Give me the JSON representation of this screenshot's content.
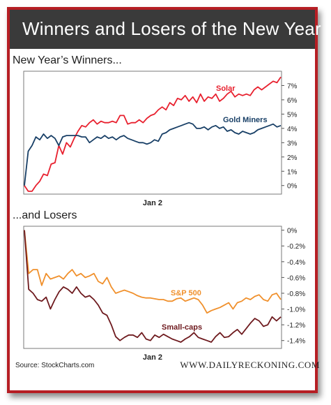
{
  "title": "Winners and Losers of the New Year",
  "footer": {
    "source": "Source: StockCharts.com",
    "brand": "WWW.DAILYRECKONING.COM"
  },
  "colors": {
    "frame": "#b61e24",
    "title_bg": "#3a3a3a",
    "solar": "#e8202e",
    "gold_miners": "#183f66",
    "sp500": "#f0902c",
    "small_caps": "#6e1a1e"
  },
  "chart_data": [
    {
      "type": "line",
      "title": "New Year’s Winners...",
      "xlabel": "Jan 2",
      "ylabel": "",
      "ylim": [
        -0.6,
        8.0
      ],
      "grid": false,
      "y_ticks": [
        "0%",
        "1%",
        "2%",
        "3%",
        "4%",
        "5%",
        "6%",
        "7%"
      ],
      "y_tick_values": [
        0,
        1,
        2,
        3,
        4,
        5,
        6,
        7
      ],
      "series": [
        {
          "name": "Solar",
          "values": [
            0,
            -0.4,
            -0.4,
            0,
            0.3,
            0.8,
            0.7,
            1.5,
            1.6,
            2.8,
            2.2,
            3.0,
            2.7,
            3.3,
            3.8,
            4.2,
            4.1,
            4.4,
            4.6,
            4.3,
            4.5,
            4.4,
            4.4,
            4.5,
            4.4,
            4.9,
            4.9,
            4.3,
            4.4,
            4.4,
            4.6,
            4.4,
            4.7,
            4.9,
            5.0,
            5.3,
            5.5,
            5.3,
            5.8,
            5.6,
            6.1,
            6.0,
            6.3,
            5.9,
            6.2,
            5.8,
            6.4,
            5.9,
            6.2,
            6.1,
            6.4,
            5.9,
            6.1,
            6.4,
            6.6,
            6.2,
            6.4,
            6.3,
            6.4,
            6.3,
            6.7,
            6.9,
            6.7,
            6.9,
            7.1,
            7.3,
            7.2,
            7.6
          ]
        },
        {
          "name": "Gold Miners",
          "values": [
            0,
            2.4,
            2.8,
            3.4,
            3.2,
            3.6,
            3.3,
            3.5,
            3.3,
            2.8,
            3.4,
            3.5,
            3.5,
            3.5,
            3.5,
            3.4,
            3.4,
            3.0,
            3.2,
            3.4,
            3.3,
            3.5,
            3.3,
            3.4,
            3.2,
            3.4,
            3.5,
            3.3,
            3.2,
            3.1,
            3.0,
            3.0,
            2.9,
            3.0,
            3.2,
            3.1,
            3.6,
            3.7,
            3.9,
            4.0,
            4.1,
            4.2,
            4.3,
            4.4,
            4.3,
            4.0,
            4.0,
            4.1,
            3.9,
            4.1,
            4.2,
            4.0,
            4.1,
            3.8,
            3.9,
            3.7,
            3.6,
            3.8,
            3.7,
            3.6,
            3.7,
            3.9,
            4.0,
            4.1,
            4.2,
            4.3,
            4.1,
            4.2
          ]
        }
      ]
    },
    {
      "type": "line",
      "title": "...and Losers",
      "xlabel": "Jan 2",
      "ylabel": "",
      "ylim": [
        -1.5,
        0.05
      ],
      "grid": false,
      "y_ticks": [
        "0%",
        "-0.2%",
        "-0.4%",
        "-0.6%",
        "-0.8%",
        "-1.0%",
        "-1.2%",
        "-1.4%"
      ],
      "y_tick_values": [
        0,
        -0.2,
        -0.4,
        -0.6,
        -0.8,
        -1.0,
        -1.2,
        -1.4
      ],
      "series": [
        {
          "name": "S&P 500",
          "values": [
            0,
            -0.55,
            -0.5,
            -0.5,
            -0.7,
            -0.55,
            -0.62,
            -0.6,
            -0.58,
            -0.62,
            -0.55,
            -0.5,
            -0.58,
            -0.55,
            -0.6,
            -0.58,
            -0.55,
            -0.65,
            -0.68,
            -0.6,
            -0.72,
            -0.8,
            -0.78,
            -0.76,
            -0.78,
            -0.8,
            -0.83,
            -0.85,
            -0.86,
            -0.86,
            -0.87,
            -0.88,
            -0.88,
            -0.9,
            -0.9,
            -0.87,
            -0.86,
            -0.9,
            -0.88,
            -0.86,
            -0.88,
            -0.95,
            -1.05,
            -1.02,
            -1.0,
            -0.98,
            -0.95,
            -0.92,
            -1.0,
            -0.92,
            -0.9,
            -0.86,
            -0.88,
            -0.84,
            -0.82,
            -0.88,
            -0.9,
            -0.82,
            -0.8,
            -0.88
          ]
        },
        {
          "name": "Small-caps",
          "values": [
            0,
            -0.75,
            -0.8,
            -0.88,
            -0.9,
            -0.85,
            -1.0,
            -0.88,
            -0.78,
            -0.72,
            -0.75,
            -0.8,
            -0.72,
            -0.8,
            -0.85,
            -0.83,
            -0.88,
            -0.95,
            -1.05,
            -1.08,
            -1.2,
            -1.35,
            -1.4,
            -1.36,
            -1.33,
            -1.33,
            -1.36,
            -1.3,
            -1.38,
            -1.4,
            -1.33,
            -1.36,
            -1.32,
            -1.35,
            -1.38,
            -1.4,
            -1.42,
            -1.38,
            -1.35,
            -1.3,
            -1.36,
            -1.38,
            -1.4,
            -1.42,
            -1.35,
            -1.3,
            -1.36,
            -1.35,
            -1.3,
            -1.26,
            -1.32,
            -1.25,
            -1.18,
            -1.12,
            -1.15,
            -1.22,
            -1.2,
            -1.1,
            -1.15,
            -1.1
          ]
        }
      ]
    }
  ]
}
